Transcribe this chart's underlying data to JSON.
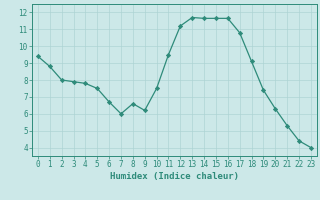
{
  "x": [
    0,
    1,
    2,
    3,
    4,
    5,
    6,
    7,
    8,
    9,
    10,
    11,
    12,
    13,
    14,
    15,
    16,
    17,
    18,
    19,
    20,
    21,
    22,
    23
  ],
  "y": [
    9.4,
    8.8,
    8.0,
    7.9,
    7.8,
    7.5,
    6.7,
    6.0,
    6.6,
    6.2,
    7.5,
    9.5,
    11.2,
    11.7,
    11.65,
    11.65,
    11.65,
    10.8,
    9.1,
    7.4,
    6.3,
    5.3,
    4.4,
    4.0
  ],
  "line_color": "#2e8b7a",
  "marker": "D",
  "marker_size": 2.2,
  "bg_color": "#cce8e8",
  "grid_color": "#aed4d4",
  "xlabel": "Humidex (Indice chaleur)",
  "xlim": [
    -0.5,
    23.5
  ],
  "ylim": [
    3.5,
    12.5
  ],
  "yticks": [
    4,
    5,
    6,
    7,
    8,
    9,
    10,
    11,
    12
  ],
  "xticks": [
    0,
    1,
    2,
    3,
    4,
    5,
    6,
    7,
    8,
    9,
    10,
    11,
    12,
    13,
    14,
    15,
    16,
    17,
    18,
    19,
    20,
    21,
    22,
    23
  ],
  "tick_label_fontsize": 5.5,
  "xlabel_fontsize": 6.5,
  "axis_color": "#2e8b7a",
  "linewidth": 0.9
}
